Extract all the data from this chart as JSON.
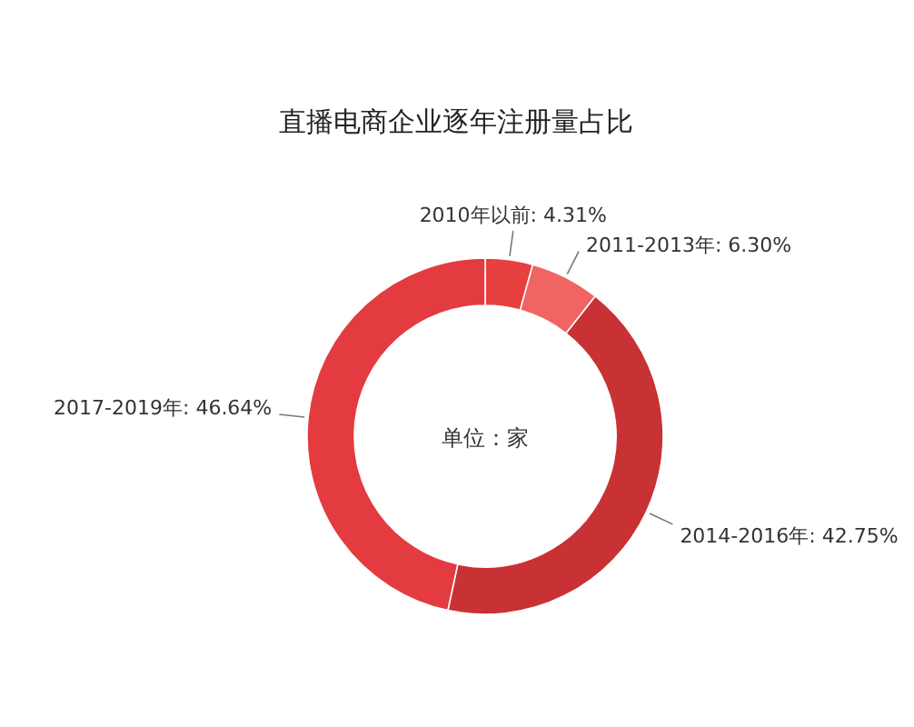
{
  "chart_data": {
    "type": "donut",
    "title": "直播电商企业逐年注册量占比",
    "categories": [
      "2010年以前",
      "2011-2013年",
      "2014-2016年",
      "2017-2019年"
    ],
    "values": [
      4.31,
      6.3,
      42.75,
      46.64
    ],
    "value_labels": [
      "4.31%",
      "6.30%",
      "42.75%",
      "46.64%"
    ],
    "colors": [
      "#e8403f",
      "#f06464",
      "#c83234",
      "#e33b3f"
    ],
    "annotations": [
      "单位：家"
    ],
    "legend": false
  }
}
